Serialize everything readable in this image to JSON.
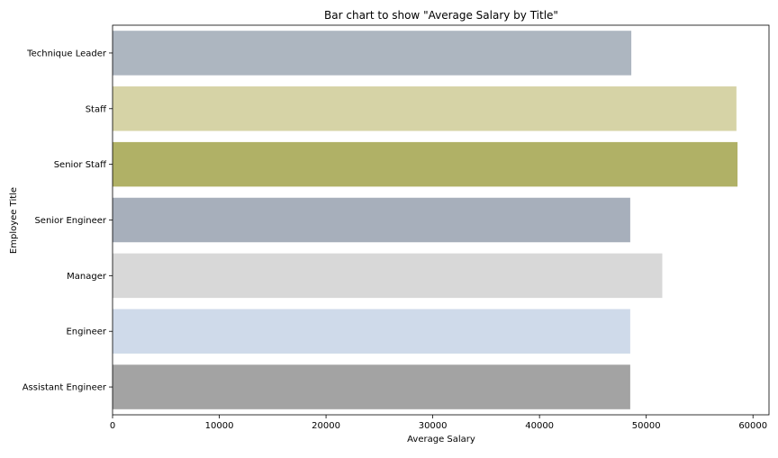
{
  "chart_data": {
    "type": "bar",
    "orientation": "horizontal",
    "title": "Bar chart to show \"Average Salary by Title\"",
    "xlabel": "Average Salary",
    "ylabel": "Employee Title",
    "categories": [
      "Assistant Engineer",
      "Engineer",
      "Manager",
      "Senior Engineer",
      "Senior Staff",
      "Staff",
      "Technique Leader"
    ],
    "values": [
      48500,
      48500,
      51500,
      48500,
      58550,
      58450,
      48600
    ],
    "colors": [
      "#a3a3a3",
      "#cfdaea",
      "#d8d8d8",
      "#a7afbb",
      "#b0b166",
      "#d6d3a6",
      "#adb6c0"
    ],
    "xlim": [
      0,
      61500
    ],
    "xticks": [
      0,
      10000,
      20000,
      30000,
      40000,
      50000,
      60000
    ],
    "grid": false
  }
}
